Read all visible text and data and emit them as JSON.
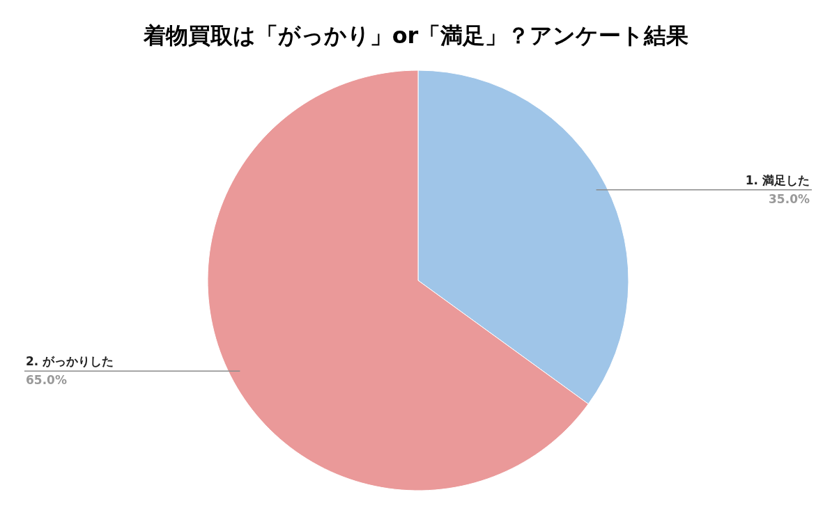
{
  "chart_data": {
    "type": "pie",
    "title": "着物買取は「がっかり」or「満足」？アンケート結果",
    "categories": [
      "1. 満足した",
      "2. がっかりした"
    ],
    "values": [
      35,
      65
    ],
    "colors": [
      "#9fc5e8",
      "#ea9999"
    ],
    "value_labels": [
      "35.0%",
      "65.0%"
    ]
  }
}
